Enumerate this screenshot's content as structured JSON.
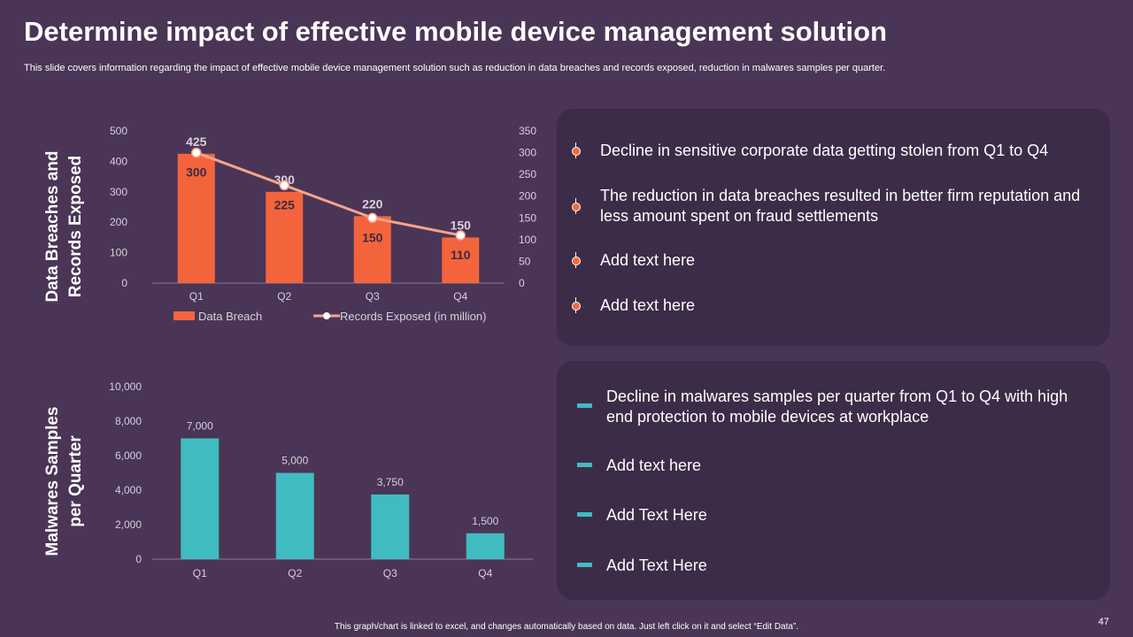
{
  "header": {
    "title": "Determine impact of effective mobile device management solution",
    "subtitle": "This slide covers information regarding the impact of effective mobile device management solution such as reduction in data breaches and records exposed, reduction in malwares samples per quarter."
  },
  "chart1": {
    "side_label_line1": "Data Breaches and",
    "side_label_line2": "Records Exposed"
  },
  "chart2": {
    "side_label_line1": "Malwares Samples",
    "side_label_line2": "per Quarter"
  },
  "chart_data": [
    {
      "type": "bar+line",
      "categories": [
        "Q1",
        "Q2",
        "Q3",
        "Q4"
      ],
      "series": [
        {
          "name": "Data Breach",
          "type": "bar",
          "axis": "left",
          "values": [
            425,
            300,
            220,
            150
          ],
          "color": "#f4643c"
        },
        {
          "name": "Records Exposed (in million)",
          "type": "line",
          "axis": "right",
          "values": [
            300,
            225,
            150,
            110
          ],
          "color": "#f4a58a"
        }
      ],
      "ylim_left": [
        0,
        500
      ],
      "yticks_left": [
        "0",
        "100",
        "200",
        "300",
        "400",
        "500"
      ],
      "ylim_right": [
        0,
        350
      ],
      "yticks_right": [
        "0",
        "50",
        "100",
        "150",
        "200",
        "250",
        "300",
        "350"
      ],
      "legend_position": "bottom"
    },
    {
      "type": "bar",
      "categories": [
        "Q1",
        "Q2",
        "Q3",
        "Q4"
      ],
      "values": [
        7000,
        5000,
        3750,
        1500
      ],
      "value_labels": [
        "7,000",
        "5,000",
        "3,750",
        "1,500"
      ],
      "ylim": [
        0,
        10000
      ],
      "yticks": [
        "0",
        "2,000",
        "4,000",
        "6,000",
        "8,000",
        "10,000"
      ],
      "color": "#40bcc1"
    }
  ],
  "panel1": {
    "items": [
      "Decline in sensitive corporate data getting stolen from Q1 to Q4",
      "The reduction in data breaches resulted in better firm reputation and less amount spent on fraud settlements",
      "Add text here",
      "Add text here"
    ]
  },
  "panel2": {
    "items": [
      "Decline in malwares samples per quarter from Q1 to Q4 with high end protection to mobile devices at workplace",
      "Add text here",
      "Add Text Here",
      "Add Text Here"
    ]
  },
  "footer": {
    "note": "This graph/chart is linked to excel, and changes automatically based on data. Just left click on it and select “Edit Data”.",
    "page_number": "47"
  },
  "colors": {
    "background": "#4a3556",
    "panel": "#3d2c48",
    "bar_orange": "#f4643c",
    "line_salmon": "#f4a58a",
    "bar_teal": "#40bcc1"
  }
}
